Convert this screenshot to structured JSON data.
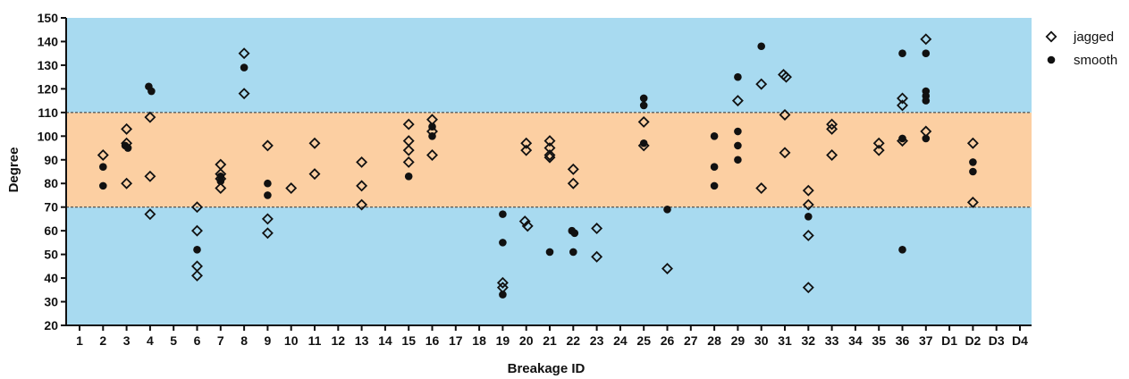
{
  "chart_data": {
    "type": "scatter",
    "title": "",
    "xlabel": "Breakage ID",
    "ylabel": "Degree",
    "categories": [
      "1",
      "2",
      "3",
      "4",
      "5",
      "6",
      "7",
      "8",
      "9",
      "10",
      "11",
      "12",
      "13",
      "14",
      "15",
      "16",
      "17",
      "18",
      "19",
      "20",
      "21",
      "22",
      "23",
      "24",
      "25",
      "26",
      "27",
      "28",
      "29",
      "30",
      "31",
      "32",
      "33",
      "34",
      "35",
      "36",
      "37",
      "D1",
      "D2",
      "D3",
      "D4"
    ],
    "ylim": [
      20,
      150
    ],
    "yticks": [
      20,
      30,
      40,
      50,
      60,
      70,
      80,
      90,
      100,
      110,
      120,
      130,
      140,
      150
    ],
    "grid": false,
    "legend_position": "top-right",
    "bands": [
      {
        "from": 20,
        "to": 70,
        "color": "#a8daf0"
      },
      {
        "from": 70,
        "to": 110,
        "color": "#fccfa2"
      },
      {
        "from": 110,
        "to": 150,
        "color": "#a8daf0"
      }
    ],
    "reference_lines": [
      70,
      110
    ],
    "series": [
      {
        "name": "jagged",
        "marker": "diamond-open",
        "color": "#111111",
        "points": [
          [
            "2",
            92
          ],
          [
            "3",
            103
          ],
          [
            "3",
            97
          ],
          [
            "3",
            80
          ],
          [
            "4",
            108
          ],
          [
            "4",
            83
          ],
          [
            "4",
            67
          ],
          [
            "6",
            70
          ],
          [
            "6",
            60
          ],
          [
            "6",
            45
          ],
          [
            "6",
            41
          ],
          [
            "7",
            88
          ],
          [
            "7",
            84
          ],
          [
            "7",
            82
          ],
          [
            "7",
            78
          ],
          [
            "8",
            135
          ],
          [
            "8",
            118
          ],
          [
            "9",
            96
          ],
          [
            "9",
            65
          ],
          [
            "9",
            59
          ],
          [
            "10",
            78
          ],
          [
            "11",
            97
          ],
          [
            "11",
            84
          ],
          [
            "13",
            89
          ],
          [
            "13",
            79
          ],
          [
            "13",
            71
          ],
          [
            "15",
            105
          ],
          [
            "15",
            98
          ],
          [
            "15",
            94
          ],
          [
            "15",
            89
          ],
          [
            "16",
            107
          ],
          [
            "16",
            102
          ],
          [
            "16",
            92
          ],
          [
            "19",
            38
          ],
          [
            "19",
            36
          ],
          [
            "20",
            97
          ],
          [
            "20",
            94
          ],
          [
            "20",
            64
          ],
          [
            "20",
            62
          ],
          [
            "21",
            98
          ],
          [
            "21",
            95
          ],
          [
            "21",
            92
          ],
          [
            "21",
            91
          ],
          [
            "22",
            86
          ],
          [
            "22",
            80
          ],
          [
            "23",
            61
          ],
          [
            "23",
            49
          ],
          [
            "25",
            106
          ],
          [
            "25",
            96
          ],
          [
            "26",
            44
          ],
          [
            "29",
            115
          ],
          [
            "30",
            122
          ],
          [
            "30",
            78
          ],
          [
            "31",
            126
          ],
          [
            "31",
            125
          ],
          [
            "31",
            109
          ],
          [
            "31",
            93
          ],
          [
            "32",
            77
          ],
          [
            "32",
            71
          ],
          [
            "32",
            58
          ],
          [
            "32",
            36
          ],
          [
            "33",
            105
          ],
          [
            "33",
            103
          ],
          [
            "33",
            92
          ],
          [
            "35",
            97
          ],
          [
            "35",
            94
          ],
          [
            "36",
            116
          ],
          [
            "36",
            113
          ],
          [
            "36",
            98
          ],
          [
            "37",
            141
          ],
          [
            "37",
            102
          ],
          [
            "D2",
            97
          ],
          [
            "D2",
            72
          ]
        ]
      },
      {
        "name": "smooth",
        "marker": "circle-filled",
        "color": "#111111",
        "points": [
          [
            "2",
            87
          ],
          [
            "2",
            79
          ],
          [
            "3",
            96
          ],
          [
            "3",
            95
          ],
          [
            "4",
            121
          ],
          [
            "4",
            119
          ],
          [
            "6",
            52
          ],
          [
            "7",
            83
          ],
          [
            "7",
            81
          ],
          [
            "8",
            129
          ],
          [
            "9",
            80
          ],
          [
            "9",
            75
          ],
          [
            "15",
            83
          ],
          [
            "16",
            104
          ],
          [
            "16",
            100
          ],
          [
            "19",
            67
          ],
          [
            "19",
            55
          ],
          [
            "19",
            33
          ],
          [
            "21",
            51
          ],
          [
            "22",
            60
          ],
          [
            "22",
            59
          ],
          [
            "22",
            51
          ],
          [
            "25",
            116
          ],
          [
            "25",
            113
          ],
          [
            "25",
            97
          ],
          [
            "26",
            69
          ],
          [
            "28",
            100
          ],
          [
            "28",
            87
          ],
          [
            "28",
            79
          ],
          [
            "29",
            125
          ],
          [
            "29",
            102
          ],
          [
            "29",
            96
          ],
          [
            "29",
            90
          ],
          [
            "30",
            138
          ],
          [
            "32",
            66
          ],
          [
            "36",
            135
          ],
          [
            "36",
            99
          ],
          [
            "36",
            52
          ],
          [
            "37",
            135
          ],
          [
            "37",
            119
          ],
          [
            "37",
            117
          ],
          [
            "37",
            115
          ],
          [
            "37",
            99
          ],
          [
            "D2",
            89
          ],
          [
            "D2",
            85
          ]
        ]
      }
    ]
  }
}
